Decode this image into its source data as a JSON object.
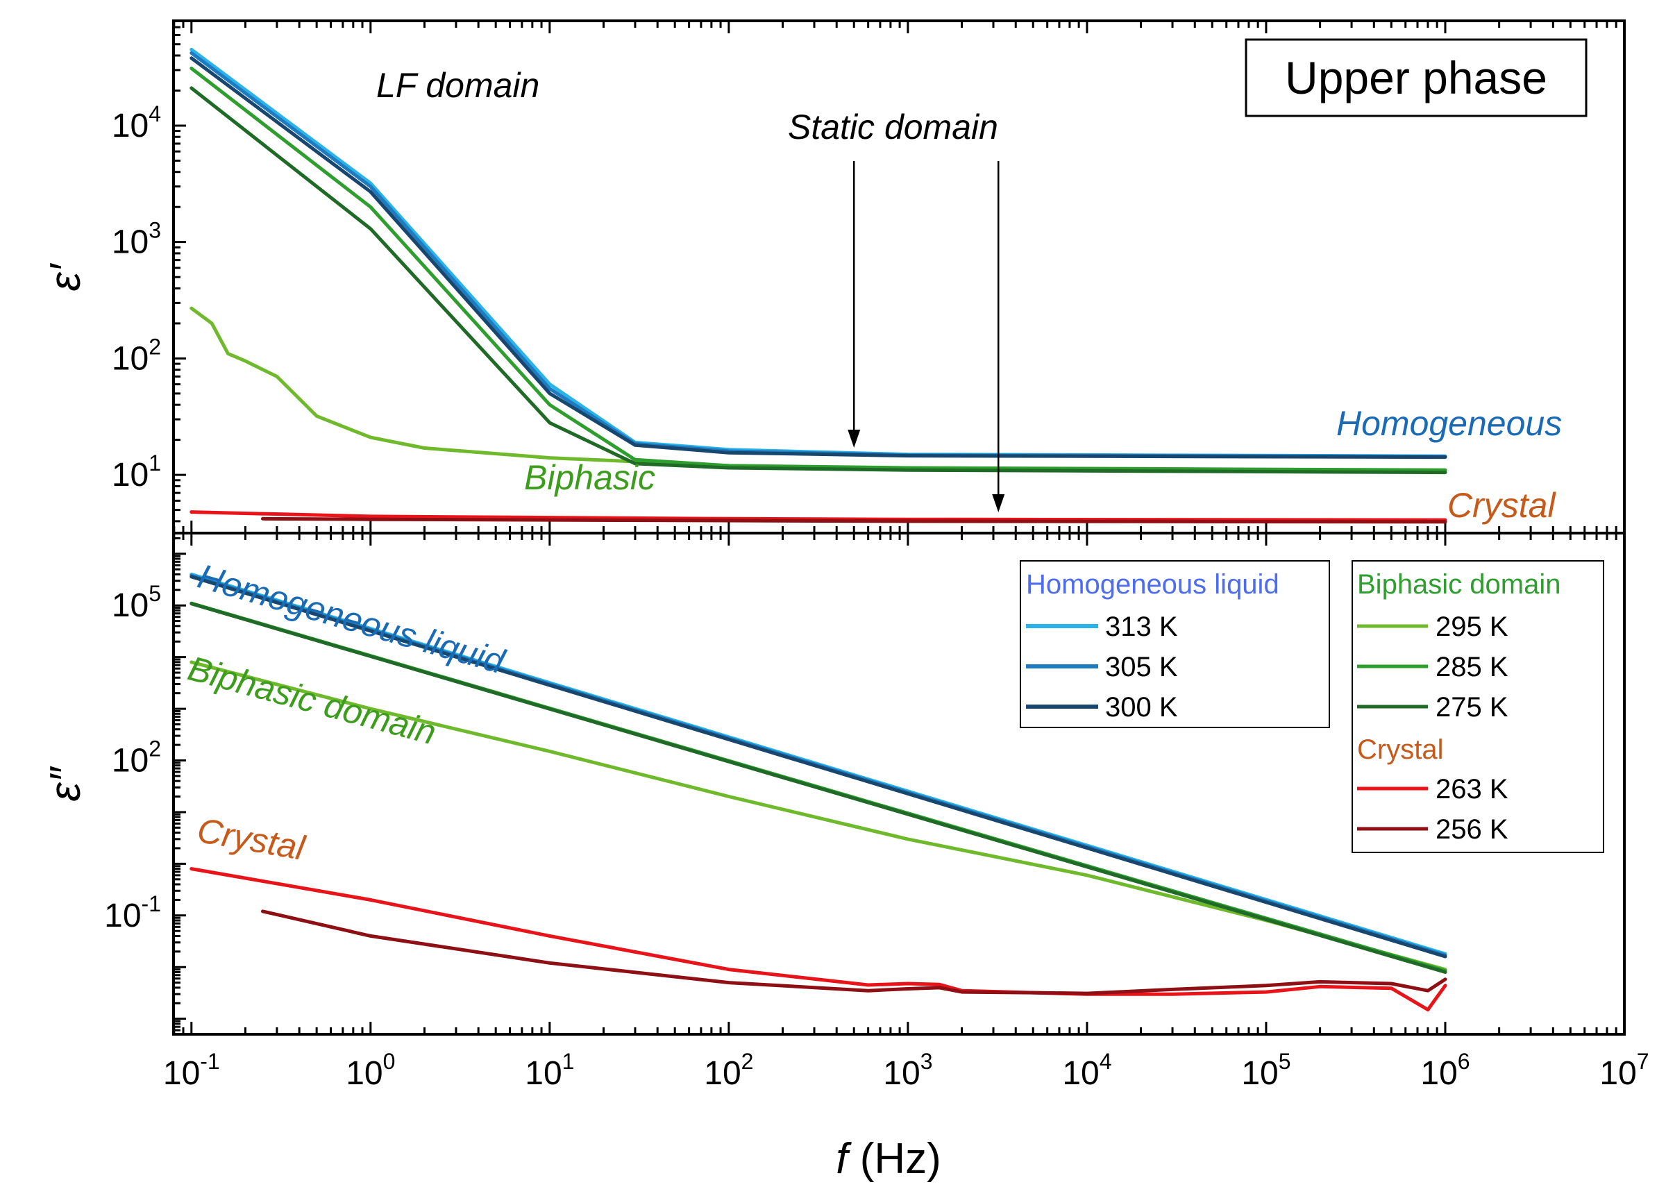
{
  "chart_data": [
    {
      "type": "line",
      "panel": "top",
      "ylabel": "ε′",
      "yscale": "log",
      "ylim_exp": [
        0.5,
        4.9
      ],
      "y_ticks": [
        {
          "base": "10",
          "exp": "1"
        },
        {
          "base": "10",
          "exp": "2"
        },
        {
          "base": "10",
          "exp": "3"
        },
        {
          "base": "10",
          "exp": "4"
        }
      ],
      "phase_box": "Upper phase",
      "annotations": {
        "lf_domain": "LF domain",
        "static_domain": "Static domain",
        "homogeneous": "Homogeneous",
        "biphasic": "Biphasic",
        "crystal": "Crystal"
      },
      "arrows_at_hz": [
        500,
        3200
      ],
      "series": [
        {
          "name": "313 K",
          "color": "#29b3e8",
          "x": [
            0.1,
            1,
            10,
            30,
            100,
            1000,
            1000000
          ],
          "y": [
            45000,
            3200,
            60,
            19,
            16.5,
            15,
            14.5
          ]
        },
        {
          "name": "305 K",
          "color": "#1f7bbf",
          "x": [
            0.1,
            1,
            10,
            30,
            100,
            1000,
            1000000
          ],
          "y": [
            42000,
            3000,
            55,
            18.5,
            16,
            14.8,
            14.4
          ]
        },
        {
          "name": "300 K",
          "color": "#17466e",
          "x": [
            0.1,
            1,
            10,
            30,
            100,
            1000,
            1000000
          ],
          "y": [
            38000,
            2700,
            50,
            18,
            15.5,
            14.6,
            14.2
          ]
        },
        {
          "name": "295 K",
          "color": "#6fba2c",
          "x": [
            0.1,
            0.13,
            0.16,
            0.2,
            0.3,
            0.5,
            1,
            2,
            10,
            100,
            1000,
            1000000
          ],
          "y": [
            270,
            200,
            110,
            95,
            70,
            32,
            21,
            17,
            14,
            12,
            11.2,
            11
          ]
        },
        {
          "name": "285 K",
          "color": "#2e9e2e",
          "x": [
            0.1,
            1,
            10,
            30,
            100,
            1000,
            1000000
          ],
          "y": [
            31000,
            2000,
            40,
            13.5,
            12,
            11.5,
            11
          ]
        },
        {
          "name": "275 K",
          "color": "#1e6a26",
          "x": [
            0.1,
            1,
            10,
            30,
            100,
            1000,
            1000000
          ],
          "y": [
            21000,
            1300,
            28,
            12.5,
            11.5,
            11,
            10.5
          ]
        },
        {
          "name": "263 K",
          "color": "#e8141a",
          "x": [
            0.1,
            1,
            10,
            100,
            1000,
            1000000
          ],
          "y": [
            4.8,
            4.4,
            4.3,
            4.2,
            4.15,
            4.1
          ]
        },
        {
          "name": "256 K",
          "color": "#8e0f14",
          "x": [
            0.25,
            1,
            10,
            100,
            1000,
            1000000
          ],
          "y": [
            4.2,
            4.15,
            4.1,
            4.05,
            4.0,
            3.95
          ]
        }
      ]
    },
    {
      "type": "line",
      "panel": "bottom",
      "ylabel": "ε″",
      "yscale": "log",
      "ylim_exp": [
        -3.3,
        6.4
      ],
      "y_ticks": [
        {
          "base": "10",
          "exp": "-1"
        },
        {
          "base": "10",
          "exp": "2"
        },
        {
          "base": "10",
          "exp": "5"
        }
      ],
      "xlabel_var": "f",
      "xlabel_unit": " (Hz)",
      "x_ticks": [
        {
          "base": "10",
          "exp": "-1"
        },
        {
          "base": "10",
          "exp": "0"
        },
        {
          "base": "10",
          "exp": "1"
        },
        {
          "base": "10",
          "exp": "2"
        },
        {
          "base": "10",
          "exp": "3"
        },
        {
          "base": "10",
          "exp": "4"
        },
        {
          "base": "10",
          "exp": "5"
        },
        {
          "base": "10",
          "exp": "6"
        },
        {
          "base": "10",
          "exp": "7"
        }
      ],
      "annotations": {
        "homogeneous_liquid": "Homogeneous liquid",
        "biphasic_domain": "Biphasic domain",
        "crystal": "Crystal"
      },
      "series": [
        {
          "name": "313 K",
          "color": "#29b3e8",
          "x": [
            0.1,
            1000000
          ],
          "y": [
            400000,
            0.018
          ]
        },
        {
          "name": "305 K",
          "color": "#1f7bbf",
          "x": [
            0.1,
            1000000
          ],
          "y": [
            380000,
            0.017
          ]
        },
        {
          "name": "300 K",
          "color": "#17466e",
          "x": [
            0.1,
            1000000
          ],
          "y": [
            360000,
            0.016
          ]
        },
        {
          "name": "295 K",
          "color": "#6fba2c",
          "x": [
            0.1,
            1,
            10,
            100,
            1000,
            10000,
            100000,
            1000000
          ],
          "y": [
            8000,
            1000,
            150,
            20,
            3,
            0.6,
            0.08,
            0.009
          ]
        },
        {
          "name": "285 K",
          "color": "#2e9e2e",
          "x": [
            0.1,
            1000000
          ],
          "y": [
            110000,
            0.0085
          ]
        },
        {
          "name": "275 K",
          "color": "#1e6a26",
          "x": [
            0.1,
            1000000
          ],
          "y": [
            108000,
            0.008
          ]
        },
        {
          "name": "263 K",
          "color": "#e8141a",
          "x": [
            0.1,
            1,
            10,
            100,
            600,
            1000,
            1500,
            2000,
            5000,
            10000,
            30000,
            100000,
            200000,
            500000,
            800000,
            1000000
          ],
          "y": [
            0.8,
            0.2,
            0.04,
            0.009,
            0.0045,
            0.0048,
            0.0046,
            0.0035,
            0.0032,
            0.003,
            0.003,
            0.0033,
            0.0042,
            0.0039,
            0.0015,
            0.0044
          ]
        },
        {
          "name": "256 K",
          "color": "#8e0f14",
          "x": [
            0.25,
            1,
            10,
            100,
            600,
            1000,
            1500,
            2000,
            5000,
            10000,
            30000,
            100000,
            200000,
            500000,
            800000,
            1000000
          ],
          "y": [
            0.12,
            0.04,
            0.012,
            0.005,
            0.0035,
            0.0038,
            0.004,
            0.0033,
            0.0032,
            0.0031,
            0.0037,
            0.0044,
            0.0052,
            0.0048,
            0.0035,
            0.0058
          ]
        }
      ],
      "legend": {
        "group1_title": "Homogeneous liquid",
        "group1_items": [
          "313 K",
          "305 K",
          "300 K"
        ],
        "group2_title": "Biphasic domain",
        "group2_items": [
          "295 K",
          "285 K",
          "275 K"
        ],
        "group3_title": "Crystal",
        "group3_items": [
          "263 K",
          "256 K"
        ]
      }
    }
  ],
  "colors": {
    "homogeneous_head": "#4d6cf0",
    "homogeneous_text": "#1a6bb5",
    "biphasic_text": "#3c9c1c",
    "crystal_text": "#c65a1a"
  }
}
